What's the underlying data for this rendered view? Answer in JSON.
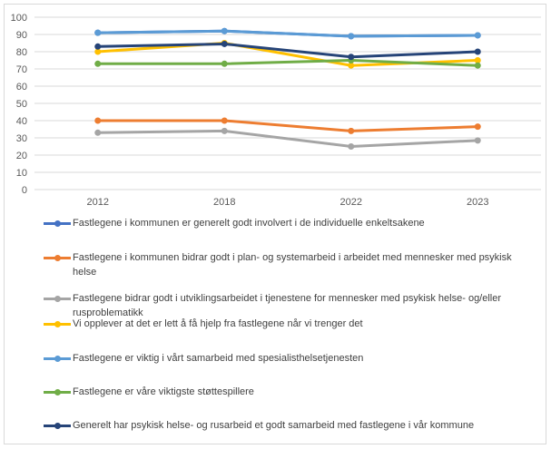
{
  "chart_data": {
    "type": "line",
    "categories": [
      "2012",
      "2018",
      "2022",
      "2023"
    ],
    "ylim": [
      0,
      100
    ],
    "yticks": [
      0,
      10,
      20,
      30,
      40,
      50,
      60,
      70,
      80,
      90,
      100
    ],
    "grid": true,
    "legend_position": "bottom",
    "series": [
      {
        "name": "Fastlegene i kommunen er generelt godt involvert i de individuelle enkeltsakene",
        "color": "#4472C4",
        "values": [
          91,
          92,
          89,
          89.5
        ]
      },
      {
        "name": "Fastlegene i kommunen bidrar godt i plan- og systemarbeid i arbeidet med mennesker med psykisk helse",
        "color": "#ED7D31",
        "values": [
          40,
          40,
          34,
          36.5
        ]
      },
      {
        "name": "Fastlegene bidrar godt i utviklingsarbeidet i tjenestene for mennesker med psykisk helse- og/eller rusproblematikk",
        "color": "#A5A5A5",
        "values": [
          33,
          34,
          25,
          28.5
        ]
      },
      {
        "name": "Vi opplever at det er lett å få hjelp fra fastlegene når vi trenger det",
        "color": "#FFC000",
        "values": [
          80,
          85,
          72,
          75
        ]
      },
      {
        "name": "Fastlegene er viktig i vårt samarbeid med spesialisthelsetjenesten",
        "color": "#5B9BD5",
        "values": [
          91,
          92,
          89,
          89.5
        ]
      },
      {
        "name": "Fastlegene er våre viktigste støttespillere",
        "color": "#70AD47",
        "values": [
          73,
          73,
          75,
          72
        ]
      },
      {
        "name": "Generelt har psykisk helse- og rusarbeid et godt samarbeid med fastlegene i vår kommune",
        "color": "#264478",
        "values": [
          83,
          84.5,
          77,
          80
        ]
      }
    ]
  }
}
